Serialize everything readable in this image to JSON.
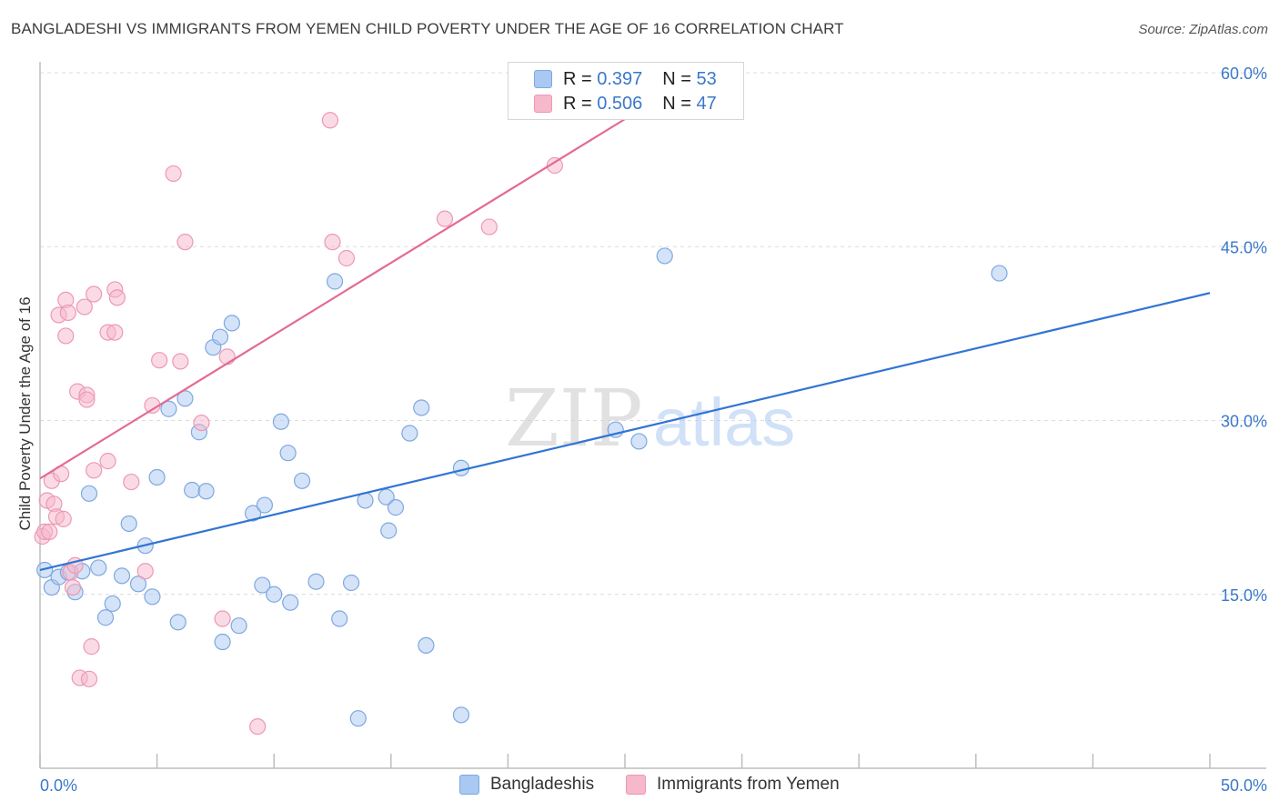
{
  "title": "BANGLADESHI VS IMMIGRANTS FROM YEMEN CHILD POVERTY UNDER THE AGE OF 16 CORRELATION CHART",
  "source": "Source: ZipAtlas.com",
  "watermark": {
    "zip": "ZIP",
    "atlas": "atlas"
  },
  "legend": {
    "r_label": "R =",
    "n_label": "N =",
    "rows": [
      {
        "name": "Bangladeshis",
        "r": "0.397",
        "n": "53"
      },
      {
        "name": "Immigrants from Yemen",
        "r": "0.506",
        "n": "47"
      }
    ]
  },
  "colors": {
    "blue_fill": "#a9c8f2",
    "blue_stroke": "#7ea8e0",
    "blue_line": "#3175d4",
    "pink_fill": "#f6b8cb",
    "pink_stroke": "#ee98b3",
    "pink_line": "#e46a93",
    "tick_text": "#3a78c9"
  },
  "chart_data": {
    "type": "scatter",
    "title": "BANGLADESHI VS IMMIGRANTS FROM YEMEN CHILD POVERTY UNDER THE AGE OF 16 CORRELATION CHART",
    "xlabel": "",
    "ylabel": "Child Poverty Under the Age of 16",
    "xlim": [
      0,
      50
    ],
    "ylim": [
      0,
      60
    ],
    "x_tick_labels": [
      "0.0%",
      "50.0%"
    ],
    "y_ticks": [
      15,
      30,
      45,
      60
    ],
    "y_tick_labels": [
      "15.0%",
      "30.0%",
      "45.0%",
      "60.0%"
    ],
    "grid": "horizontal dashed",
    "legend_position": "top-center",
    "series": [
      {
        "name": "Bangladeshis",
        "color": "#a9c8f2",
        "trend": {
          "x": [
            0,
            50
          ],
          "y": [
            17.1,
            41.0
          ]
        },
        "points": [
          [
            0.2,
            17.1
          ],
          [
            0.5,
            15.6
          ],
          [
            0.8,
            16.5
          ],
          [
            1.2,
            16.9
          ],
          [
            1.5,
            15.2
          ],
          [
            1.8,
            17.0
          ],
          [
            2.1,
            23.7
          ],
          [
            2.5,
            17.3
          ],
          [
            2.8,
            13.0
          ],
          [
            3.1,
            14.2
          ],
          [
            3.5,
            16.6
          ],
          [
            3.8,
            21.1
          ],
          [
            4.2,
            15.9
          ],
          [
            4.5,
            19.2
          ],
          [
            4.8,
            14.8
          ],
          [
            5.0,
            25.1
          ],
          [
            5.5,
            31.0
          ],
          [
            5.9,
            12.6
          ],
          [
            6.2,
            31.9
          ],
          [
            6.5,
            24.0
          ],
          [
            6.8,
            29.0
          ],
          [
            7.1,
            23.9
          ],
          [
            7.4,
            36.3
          ],
          [
            7.7,
            37.2
          ],
          [
            7.8,
            10.9
          ],
          [
            8.2,
            38.4
          ],
          [
            8.5,
            12.3
          ],
          [
            9.1,
            22.0
          ],
          [
            9.5,
            15.8
          ],
          [
            9.6,
            22.7
          ],
          [
            10.0,
            15.0
          ],
          [
            10.3,
            29.9
          ],
          [
            10.6,
            27.2
          ],
          [
            10.7,
            14.3
          ],
          [
            11.2,
            24.8
          ],
          [
            11.8,
            16.1
          ],
          [
            12.6,
            42.0
          ],
          [
            12.8,
            12.9
          ],
          [
            13.3,
            16.0
          ],
          [
            13.6,
            4.3
          ],
          [
            13.9,
            23.1
          ],
          [
            14.8,
            23.4
          ],
          [
            14.9,
            20.5
          ],
          [
            15.2,
            22.5
          ],
          [
            15.8,
            28.9
          ],
          [
            16.3,
            31.1
          ],
          [
            16.5,
            10.6
          ],
          [
            18.0,
            25.9
          ],
          [
            18.0,
            4.6
          ],
          [
            24.6,
            29.2
          ],
          [
            25.6,
            28.2
          ],
          [
            26.7,
            44.2
          ],
          [
            41.0,
            42.7
          ]
        ]
      },
      {
        "name": "Immigrants from Yemen",
        "color": "#f6b8cb",
        "trend": {
          "x": [
            0,
            25
          ],
          "y": [
            25.0,
            56.0
          ]
        },
        "points": [
          [
            0.1,
            20.0
          ],
          [
            0.2,
            20.4
          ],
          [
            0.3,
            23.1
          ],
          [
            0.4,
            20.4
          ],
          [
            0.5,
            24.8
          ],
          [
            0.6,
            22.8
          ],
          [
            0.7,
            21.7
          ],
          [
            0.8,
            39.1
          ],
          [
            0.9,
            25.4
          ],
          [
            1.0,
            21.5
          ],
          [
            1.1,
            37.3
          ],
          [
            1.1,
            40.4
          ],
          [
            1.2,
            39.3
          ],
          [
            1.3,
            16.9
          ],
          [
            1.4,
            15.6
          ],
          [
            1.5,
            17.5
          ],
          [
            1.6,
            32.5
          ],
          [
            1.7,
            7.8
          ],
          [
            1.9,
            39.8
          ],
          [
            2.0,
            32.2
          ],
          [
            2.0,
            31.8
          ],
          [
            2.1,
            7.7
          ],
          [
            2.2,
            10.5
          ],
          [
            2.3,
            40.9
          ],
          [
            2.3,
            25.7
          ],
          [
            2.9,
            26.5
          ],
          [
            2.9,
            37.6
          ],
          [
            3.2,
            37.6
          ],
          [
            3.2,
            41.3
          ],
          [
            3.3,
            40.6
          ],
          [
            3.9,
            24.7
          ],
          [
            4.5,
            17.0
          ],
          [
            4.8,
            31.3
          ],
          [
            5.1,
            35.2
          ],
          [
            5.7,
            51.3
          ],
          [
            6.0,
            35.1
          ],
          [
            6.2,
            45.4
          ],
          [
            6.9,
            29.8
          ],
          [
            7.8,
            12.9
          ],
          [
            8.0,
            35.5
          ],
          [
            9.3,
            3.6
          ],
          [
            12.4,
            55.9
          ],
          [
            12.5,
            45.4
          ],
          [
            13.1,
            44.0
          ],
          [
            17.3,
            47.4
          ],
          [
            19.2,
            46.7
          ],
          [
            22.0,
            52.0
          ]
        ]
      }
    ]
  }
}
